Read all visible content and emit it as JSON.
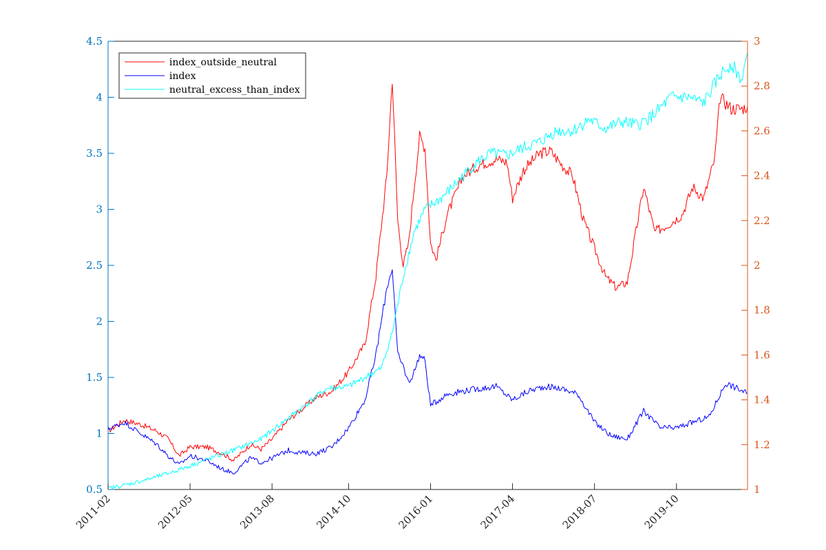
{
  "chart_data": {
    "type": "line",
    "title": "",
    "xlabel": "",
    "ylabel": "",
    "x_ticks": [
      "2011-02",
      "2012-05",
      "2013-08",
      "2014-10",
      "2016-01",
      "2017-04",
      "2018-07",
      "2019-10"
    ],
    "x_range": [
      "2011-02",
      "2020-11"
    ],
    "y_left": {
      "range": [
        0.5,
        4.5
      ],
      "ticks": [
        "0.5",
        "1",
        "1.5",
        "2",
        "2.5",
        "3",
        "3.5",
        "4",
        "4.5"
      ]
    },
    "y_right": {
      "range": [
        1,
        3
      ],
      "ticks": [
        "1",
        "1.2",
        "1.4",
        "1.6",
        "1.8",
        "2",
        "2.2",
        "2.4",
        "2.6",
        "2.8",
        "3"
      ]
    },
    "grid": false,
    "legend_placement": "top-left",
    "colors": {
      "left_axis": "#0072BD",
      "right_axis": "#D95319",
      "axes": "#262626"
    },
    "series": [
      {
        "name": "index_outside_neutral",
        "color": "#ff0000",
        "axis": "left",
        "points": [
          [
            "2011-02",
            1.02
          ],
          [
            "2011-05",
            1.12
          ],
          [
            "2011-08",
            1.08
          ],
          [
            "2011-11",
            1.02
          ],
          [
            "2012-01",
            0.95
          ],
          [
            "2012-03",
            0.8
          ],
          [
            "2012-05",
            0.88
          ],
          [
            "2012-08",
            0.88
          ],
          [
            "2012-11",
            0.82
          ],
          [
            "2013-01",
            0.76
          ],
          [
            "2013-04",
            0.9
          ],
          [
            "2013-06",
            0.86
          ],
          [
            "2013-08",
            0.95
          ],
          [
            "2013-11",
            1.12
          ],
          [
            "2014-01",
            1.2
          ],
          [
            "2014-04",
            1.32
          ],
          [
            "2014-07",
            1.38
          ],
          [
            "2014-10",
            1.55
          ],
          [
            "2015-01",
            1.8
          ],
          [
            "2015-03",
            2.4
          ],
          [
            "2015-05",
            3.3
          ],
          [
            "2015-06",
            4.17
          ],
          [
            "2015-07",
            2.9
          ],
          [
            "2015-08",
            2.5
          ],
          [
            "2015-09",
            2.7
          ],
          [
            "2015-10",
            3.2
          ],
          [
            "2015-11",
            3.65
          ],
          [
            "2015-12",
            3.55
          ],
          [
            "2016-01",
            2.7
          ],
          [
            "2016-02",
            2.55
          ],
          [
            "2016-04",
            2.95
          ],
          [
            "2016-07",
            3.3
          ],
          [
            "2016-10",
            3.4
          ],
          [
            "2017-01",
            3.45
          ],
          [
            "2017-03",
            3.42
          ],
          [
            "2017-04",
            3.1
          ],
          [
            "2017-06",
            3.35
          ],
          [
            "2017-09",
            3.5
          ],
          [
            "2017-11",
            3.52
          ],
          [
            "2018-01",
            3.4
          ],
          [
            "2018-03",
            3.3
          ],
          [
            "2018-05",
            2.9
          ],
          [
            "2018-07",
            2.65
          ],
          [
            "2018-09",
            2.4
          ],
          [
            "2018-11",
            2.3
          ],
          [
            "2019-01",
            2.35
          ],
          [
            "2019-04",
            3.2
          ],
          [
            "2019-06",
            2.8
          ],
          [
            "2019-08",
            2.85
          ],
          [
            "2019-11",
            2.95
          ],
          [
            "2020-01",
            3.2
          ],
          [
            "2020-03",
            3.1
          ],
          [
            "2020-05",
            3.45
          ],
          [
            "2020-06",
            4.0
          ],
          [
            "2020-08",
            3.9
          ],
          [
            "2020-10",
            3.9
          ],
          [
            "2020-11",
            3.92
          ]
        ]
      },
      {
        "name": "index",
        "color": "#0000ff",
        "axis": "left",
        "points": [
          [
            "2011-02",
            1.04
          ],
          [
            "2011-05",
            1.1
          ],
          [
            "2011-08",
            1.0
          ],
          [
            "2011-11",
            0.9
          ],
          [
            "2012-01",
            0.8
          ],
          [
            "2012-03",
            0.72
          ],
          [
            "2012-05",
            0.8
          ],
          [
            "2012-08",
            0.76
          ],
          [
            "2012-11",
            0.68
          ],
          [
            "2013-01",
            0.65
          ],
          [
            "2013-04",
            0.78
          ],
          [
            "2013-06",
            0.74
          ],
          [
            "2013-08",
            0.78
          ],
          [
            "2013-11",
            0.85
          ],
          [
            "2014-01",
            0.83
          ],
          [
            "2014-04",
            0.82
          ],
          [
            "2014-07",
            0.88
          ],
          [
            "2014-10",
            1.05
          ],
          [
            "2015-01",
            1.3
          ],
          [
            "2015-03",
            1.7
          ],
          [
            "2015-05",
            2.3
          ],
          [
            "2015-06",
            2.48
          ],
          [
            "2015-07",
            1.7
          ],
          [
            "2015-08",
            1.6
          ],
          [
            "2015-09",
            1.45
          ],
          [
            "2015-10",
            1.55
          ],
          [
            "2015-11",
            1.7
          ],
          [
            "2015-12",
            1.65
          ],
          [
            "2016-01",
            1.25
          ],
          [
            "2016-04",
            1.35
          ],
          [
            "2016-07",
            1.38
          ],
          [
            "2016-10",
            1.4
          ],
          [
            "2017-01",
            1.42
          ],
          [
            "2017-04",
            1.3
          ],
          [
            "2017-07",
            1.38
          ],
          [
            "2017-10",
            1.42
          ],
          [
            "2018-01",
            1.4
          ],
          [
            "2018-04",
            1.35
          ],
          [
            "2018-07",
            1.1
          ],
          [
            "2018-10",
            0.98
          ],
          [
            "2019-01",
            0.95
          ],
          [
            "2019-04",
            1.2
          ],
          [
            "2019-07",
            1.05
          ],
          [
            "2019-10",
            1.05
          ],
          [
            "2020-01",
            1.1
          ],
          [
            "2020-04",
            1.15
          ],
          [
            "2020-07",
            1.45
          ],
          [
            "2020-11",
            1.36
          ]
        ]
      },
      {
        "name": "neutral_excess_than_index",
        "color": "#00ffff",
        "axis": "left",
        "points": [
          [
            "2011-02",
            0.51
          ],
          [
            "2011-06",
            0.55
          ],
          [
            "2011-10",
            0.6
          ],
          [
            "2012-02",
            0.66
          ],
          [
            "2012-06",
            0.73
          ],
          [
            "2012-10",
            0.8
          ],
          [
            "2013-02",
            0.87
          ],
          [
            "2013-06",
            0.95
          ],
          [
            "2013-10",
            1.1
          ],
          [
            "2014-02",
            1.25
          ],
          [
            "2014-06",
            1.4
          ],
          [
            "2014-10",
            1.42
          ],
          [
            "2015-01",
            1.5
          ],
          [
            "2015-04",
            1.58
          ],
          [
            "2015-06",
            1.9
          ],
          [
            "2015-08",
            2.4
          ],
          [
            "2015-10",
            2.8
          ],
          [
            "2015-12",
            3.0
          ],
          [
            "2016-03",
            3.1
          ],
          [
            "2016-06",
            3.25
          ],
          [
            "2016-09",
            3.4
          ],
          [
            "2016-12",
            3.5
          ],
          [
            "2017-03",
            3.48
          ],
          [
            "2017-06",
            3.55
          ],
          [
            "2017-09",
            3.6
          ],
          [
            "2017-12",
            3.7
          ],
          [
            "2018-03",
            3.7
          ],
          [
            "2018-06",
            3.8
          ],
          [
            "2018-09",
            3.72
          ],
          [
            "2018-12",
            3.78
          ],
          [
            "2019-03",
            3.75
          ],
          [
            "2019-06",
            3.85
          ],
          [
            "2019-09",
            4.0
          ],
          [
            "2019-12",
            4.0
          ],
          [
            "2020-03",
            3.95
          ],
          [
            "2020-06",
            4.2
          ],
          [
            "2020-08",
            4.3
          ],
          [
            "2020-10",
            4.15
          ],
          [
            "2020-11",
            4.4
          ]
        ]
      }
    ]
  }
}
